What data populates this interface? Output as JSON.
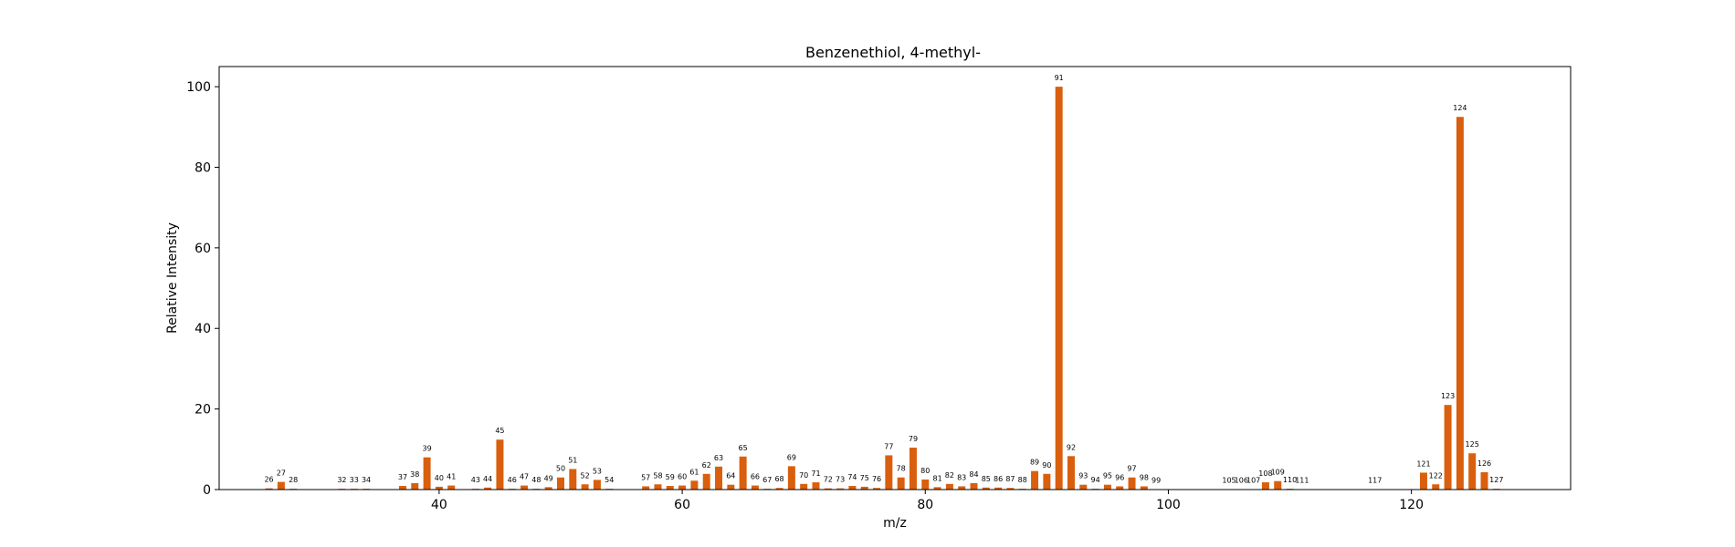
{
  "chart_data": {
    "type": "bar",
    "title": "Benzenethiol, 4-methyl-",
    "xlabel": "m/z",
    "ylabel": "Relative Intensity",
    "xlim": [
      21.9,
      133.1
    ],
    "ylim": [
      0,
      105
    ],
    "xticks": [
      40,
      60,
      80,
      100,
      120
    ],
    "yticks": [
      0,
      20,
      40,
      60,
      80,
      100
    ],
    "bar_color": "#d95f0e",
    "grid": false,
    "points": [
      {
        "mz": 26,
        "intensity": 0.3
      },
      {
        "mz": 27,
        "intensity": 1.9
      },
      {
        "mz": 28,
        "intensity": 0.2
      },
      {
        "mz": 32,
        "intensity": 0.2
      },
      {
        "mz": 33,
        "intensity": 0.2
      },
      {
        "mz": 34,
        "intensity": 0.2
      },
      {
        "mz": 37,
        "intensity": 0.9
      },
      {
        "mz": 38,
        "intensity": 1.6
      },
      {
        "mz": 39,
        "intensity": 8.0
      },
      {
        "mz": 40,
        "intensity": 0.7
      },
      {
        "mz": 41,
        "intensity": 1.0
      },
      {
        "mz": 43,
        "intensity": 0.2
      },
      {
        "mz": 44,
        "intensity": 0.5
      },
      {
        "mz": 45,
        "intensity": 12.4
      },
      {
        "mz": 46,
        "intensity": 0.2
      },
      {
        "mz": 47,
        "intensity": 1.0
      },
      {
        "mz": 48,
        "intensity": 0.2
      },
      {
        "mz": 49,
        "intensity": 0.6
      },
      {
        "mz": 50,
        "intensity": 3.0
      },
      {
        "mz": 51,
        "intensity": 5.1
      },
      {
        "mz": 52,
        "intensity": 1.3
      },
      {
        "mz": 53,
        "intensity": 2.4
      },
      {
        "mz": 54,
        "intensity": 0.2
      },
      {
        "mz": 57,
        "intensity": 0.8
      },
      {
        "mz": 58,
        "intensity": 1.3
      },
      {
        "mz": 59,
        "intensity": 0.9
      },
      {
        "mz": 60,
        "intensity": 1.0
      },
      {
        "mz": 61,
        "intensity": 2.2
      },
      {
        "mz": 62,
        "intensity": 3.9
      },
      {
        "mz": 63,
        "intensity": 5.7
      },
      {
        "mz": 64,
        "intensity": 1.2
      },
      {
        "mz": 65,
        "intensity": 8.2
      },
      {
        "mz": 66,
        "intensity": 1.0
      },
      {
        "mz": 67,
        "intensity": 0.2
      },
      {
        "mz": 68,
        "intensity": 0.4
      },
      {
        "mz": 69,
        "intensity": 5.8
      },
      {
        "mz": 70,
        "intensity": 1.4
      },
      {
        "mz": 71,
        "intensity": 1.8
      },
      {
        "mz": 72,
        "intensity": 0.3
      },
      {
        "mz": 73,
        "intensity": 0.3
      },
      {
        "mz": 74,
        "intensity": 0.9
      },
      {
        "mz": 75,
        "intensity": 0.7
      },
      {
        "mz": 76,
        "intensity": 0.4
      },
      {
        "mz": 77,
        "intensity": 8.5
      },
      {
        "mz": 78,
        "intensity": 3.0
      },
      {
        "mz": 79,
        "intensity": 10.4
      },
      {
        "mz": 80,
        "intensity": 2.5
      },
      {
        "mz": 81,
        "intensity": 0.6
      },
      {
        "mz": 82,
        "intensity": 1.4
      },
      {
        "mz": 83,
        "intensity": 0.8
      },
      {
        "mz": 84,
        "intensity": 1.6
      },
      {
        "mz": 85,
        "intensity": 0.5
      },
      {
        "mz": 86,
        "intensity": 0.5
      },
      {
        "mz": 87,
        "intensity": 0.4
      },
      {
        "mz": 88,
        "intensity": 0.2
      },
      {
        "mz": 89,
        "intensity": 4.6
      },
      {
        "mz": 90,
        "intensity": 3.9
      },
      {
        "mz": 91,
        "intensity": 100.0
      },
      {
        "mz": 92,
        "intensity": 8.3
      },
      {
        "mz": 93,
        "intensity": 1.2
      },
      {
        "mz": 94,
        "intensity": 0.2
      },
      {
        "mz": 95,
        "intensity": 1.2
      },
      {
        "mz": 96,
        "intensity": 0.8
      },
      {
        "mz": 97,
        "intensity": 3.0
      },
      {
        "mz": 98,
        "intensity": 0.8
      },
      {
        "mz": 99,
        "intensity": 0.1
      },
      {
        "mz": 105,
        "intensity": 0.1
      },
      {
        "mz": 106,
        "intensity": 0.1
      },
      {
        "mz": 107,
        "intensity": 0.1
      },
      {
        "mz": 108,
        "intensity": 1.8
      },
      {
        "mz": 109,
        "intensity": 2.1
      },
      {
        "mz": 110,
        "intensity": 0.2
      },
      {
        "mz": 111,
        "intensity": 0.1
      },
      {
        "mz": 117,
        "intensity": 0.1
      },
      {
        "mz": 121,
        "intensity": 4.2
      },
      {
        "mz": 122,
        "intensity": 1.3
      },
      {
        "mz": 123,
        "intensity": 21.0
      },
      {
        "mz": 124,
        "intensity": 92.5
      },
      {
        "mz": 125,
        "intensity": 9.0
      },
      {
        "mz": 126,
        "intensity": 4.3
      },
      {
        "mz": 127,
        "intensity": 0.2
      }
    ]
  }
}
